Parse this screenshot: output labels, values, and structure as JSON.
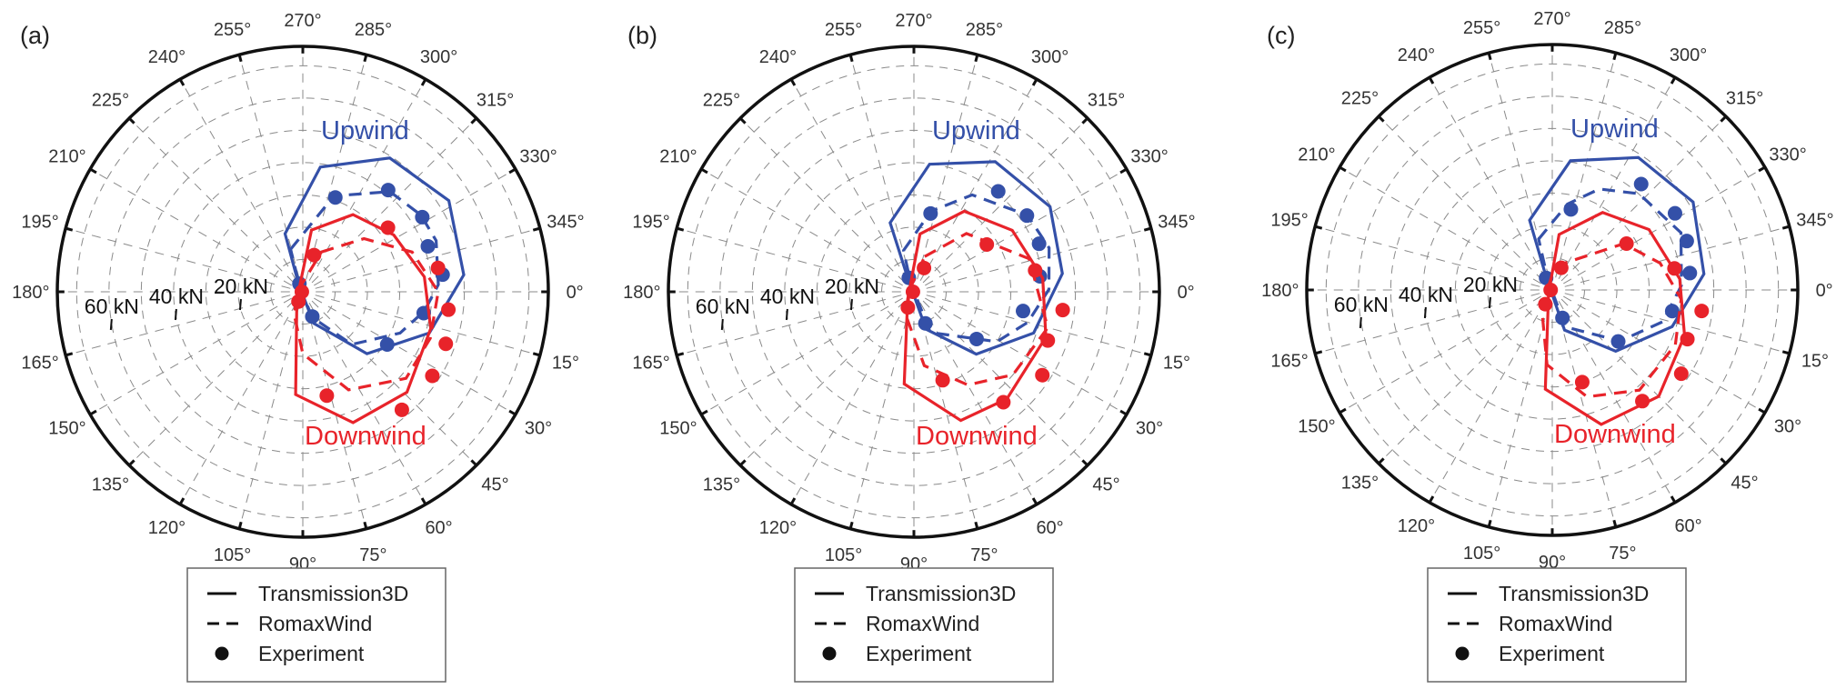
{
  "colors": {
    "upwind": "#3450A8",
    "downwind": "#E8232A",
    "axis": "#111111",
    "grid": "#8a8a8a"
  },
  "legend": {
    "items": [
      {
        "label": "Transmission3D",
        "style": "solid"
      },
      {
        "label": "RomaxWind",
        "style": "dashed"
      },
      {
        "label": "Experiment",
        "style": "dot"
      }
    ]
  },
  "chart_data": [
    {
      "type": "polar-line",
      "panel_label": "(a)",
      "angle_ticks": [
        0,
        15,
        30,
        45,
        60,
        75,
        90,
        105,
        120,
        135,
        150,
        165,
        180,
        195,
        210,
        225,
        240,
        255,
        270,
        285,
        300,
        315,
        330,
        345
      ],
      "angle_direction": "clockwise, 0° at right",
      "radial_ticks": [
        "20 kN",
        "40 kN",
        "60 kN"
      ],
      "radial_range_kN": [
        0,
        76
      ],
      "annotations": {
        "upwind": "Upwind",
        "downwind": "Downwind"
      },
      "series": [
        {
          "name": "Transmission3D",
          "group": "upwind",
          "style": "solid",
          "points": [
            [
              253,
              18.8
            ],
            [
              278,
              39.0
            ],
            [
              303,
              49.4
            ],
            [
              328,
              53.3
            ],
            [
              354,
              50.1
            ],
            [
              18,
              41.2
            ],
            [
              44,
              27.6
            ],
            [
              71,
              10.3
            ],
            [
              242,
              2.8
            ]
          ]
        },
        {
          "name": "RomaxWind",
          "group": "upwind",
          "style": "dashed",
          "points": [
            [
              254,
              13.7
            ],
            [
              288,
              31.2
            ],
            [
              311,
              41.1
            ],
            [
              327,
              43.6
            ],
            [
              339,
              44.2
            ],
            [
              357,
              42.0
            ],
            [
              9,
              38.1
            ],
            [
              23,
              32.7
            ],
            [
              47,
              22.3
            ],
            [
              70,
              8.4
            ],
            [
              240,
              2.0
            ]
          ]
        },
        {
          "name": "Experiment",
          "group": "upwind",
          "style": "dot",
          "points": [
            [
              289,
              30.9
            ],
            [
              310,
              41.1
            ],
            [
              328,
              43.6
            ],
            [
              340,
              41.2
            ],
            [
              353,
              43.6
            ],
            [
              10,
              38.0
            ],
            [
              32,
              30.8
            ],
            [
              69,
              8.2
            ],
            [
              247,
              2.7
            ]
          ]
        },
        {
          "name": "Transmission3D",
          "group": "downwind",
          "style": "solid",
          "points": [
            [
              278,
              19.3
            ],
            [
              303,
              28.5
            ],
            [
              328,
              33.2
            ],
            [
              353,
              37.9
            ],
            [
              16,
              41.2
            ],
            [
              44,
              44.8
            ],
            [
              69,
              43.4
            ],
            [
              94,
              31.9
            ],
            [
              128,
              3.0
            ]
          ]
        },
        {
          "name": "RomaxWind",
          "group": "downwind",
          "style": "dashed",
          "points": [
            [
              295,
              13.6
            ],
            [
              319,
              25.1
            ],
            [
              340,
              36.0
            ],
            [
              0,
              41.9
            ],
            [
              20,
              42.0
            ],
            [
              40,
              41.7
            ],
            [
              65,
              33.5
            ],
            [
              90,
              19.2
            ],
            [
              111,
              7.5
            ],
            [
              200,
              1.5
            ]
          ]
        },
        {
          "name": "Experiment",
          "group": "downwind",
          "style": "dot",
          "points": [
            [
              287,
              11.9
            ],
            [
              323,
              33.0
            ],
            [
              350,
              42.5
            ],
            [
              7,
              45.4
            ],
            [
              20,
              47.1
            ],
            [
              33,
              47.8
            ],
            [
              50,
              47.7
            ],
            [
              77,
              33.0
            ],
            [
              114,
              3.3
            ],
            [
              180,
              0.3
            ]
          ]
        }
      ]
    },
    {
      "type": "polar-line",
      "panel_label": "(b)",
      "angle_ticks": [
        0,
        15,
        30,
        45,
        60,
        75,
        90,
        105,
        120,
        135,
        150,
        165,
        180,
        195,
        210,
        225,
        240,
        255,
        270,
        285,
        300,
        315,
        330,
        345
      ],
      "angle_direction": "clockwise, 0° at right",
      "radial_ticks": [
        "20 kN",
        "40 kN",
        "60 kN"
      ],
      "radial_range_kN": [
        0,
        76
      ],
      "annotations": {
        "upwind": "Upwind",
        "downwind": "Downwind"
      },
      "series": [
        {
          "name": "Transmission3D",
          "group": "upwind",
          "style": "solid",
          "points": [
            [
              251,
              22.6
            ],
            [
              277,
              39.8
            ],
            [
              302,
              47.5
            ],
            [
              328,
              49.7
            ],
            [
              353,
              46.3
            ],
            [
              19,
              39.2
            ],
            [
              45,
              27.3
            ],
            [
              72,
              12.2
            ],
            [
              246,
              4.7
            ]
          ]
        },
        {
          "name": "RomaxWind",
          "group": "upwind",
          "style": "dashed",
          "points": [
            [
              256,
              13.2
            ],
            [
              282,
              25.5
            ],
            [
              301,
              35.0
            ],
            [
              326,
              42.4
            ],
            [
              342,
              44.0
            ],
            [
              359,
              41.8
            ],
            [
              15,
              36.5
            ],
            [
              31,
              30.0
            ],
            [
              68,
              13.6
            ],
            [
              250,
              3.0
            ]
          ]
        },
        {
          "name": "Experiment",
          "group": "upwind",
          "style": "dot",
          "points": [
            [
              282,
              24.8
            ],
            [
              310,
              40.6
            ],
            [
              326,
              42.2
            ],
            [
              339,
              41.5
            ],
            [
              353,
              39.3
            ],
            [
              10,
              34.3
            ],
            [
              37,
              24.3
            ],
            [
              70,
              10.4
            ],
            [
              250,
              4.6
            ]
          ]
        },
        {
          "name": "Transmission3D",
          "group": "downwind",
          "style": "solid",
          "points": [
            [
              276,
              18.0
            ],
            [
              302,
              29.4
            ],
            [
              328,
              35.9
            ],
            [
              354,
              40.1
            ],
            [
              19,
              43.2
            ],
            [
              49,
              43.9
            ],
            [
              70,
              42.4
            ],
            [
              96,
              28.7
            ],
            [
              130,
              3.0
            ]
          ]
        },
        {
          "name": "RomaxWind",
          "group": "downwind",
          "style": "dashed",
          "points": [
            [
              287,
              11.4
            ],
            [
              312,
              24.3
            ],
            [
              344,
              37.1
            ],
            [
              15,
              42.9
            ],
            [
              40,
              40.0
            ],
            [
              60,
              33.3
            ],
            [
              82,
              23.1
            ],
            [
              106,
              8.2
            ],
            [
              200,
              1.5
            ]
          ]
        },
        {
          "name": "Experiment",
          "group": "downwind",
          "style": "dot",
          "points": [
            [
              293,
              8.0
            ],
            [
              327,
              26.9
            ],
            [
              350,
              38.1
            ],
            [
              7,
              46.4
            ],
            [
              20,
              44.1
            ],
            [
              33,
              47.4
            ],
            [
              51,
              44.0
            ],
            [
              72,
              28.8
            ],
            [
              111,
              5.2
            ],
            [
              180,
              0.3
            ]
          ]
        }
      ]
    },
    {
      "type": "polar-line",
      "panel_label": "(c)",
      "angle_ticks": [
        0,
        15,
        30,
        45,
        60,
        75,
        90,
        105,
        120,
        135,
        150,
        165,
        180,
        195,
        210,
        225,
        240,
        255,
        270,
        285,
        300,
        315,
        330,
        345
      ],
      "angle_direction": "clockwise, 0° at right",
      "radial_ticks": [
        "20 kN",
        "40 kN",
        "60 kN"
      ],
      "radial_range_kN": [
        0,
        76
      ],
      "annotations": {
        "upwind": "Upwind",
        "downwind": "Downwind"
      },
      "series": [
        {
          "name": "Transmission3D",
          "group": "upwind",
          "style": "solid",
          "points": [
            [
              252,
              22.7
            ],
            [
              278,
              40.4
            ],
            [
              303,
              48.9
            ],
            [
              328,
              51.4
            ],
            [
              354,
              47.2
            ],
            [
              17,
              38.8
            ],
            [
              44,
              27.3
            ],
            [
              73,
              13.0
            ],
            [
              245,
              4.5
            ]
          ]
        },
        {
          "name": "RomaxWind",
          "group": "upwind",
          "style": "dashed",
          "points": [
            [
              255,
              16.3
            ],
            [
              280,
              27.0
            ],
            [
              295,
              34.5
            ],
            [
              312,
              40.1
            ],
            [
              336,
              43.6
            ],
            [
              358,
              40.0
            ],
            [
              16,
              35.6
            ],
            [
              37,
              26.3
            ],
            [
              70,
              12.2
            ],
            [
              245,
              3.0
            ]
          ]
        },
        {
          "name": "Experiment",
          "group": "upwind",
          "style": "dot",
          "points": [
            [
              283,
              25.6
            ],
            [
              310,
              42.8
            ],
            [
              328,
              44.8
            ],
            [
              340,
              44.3
            ],
            [
              353,
              42.9
            ],
            [
              10,
              37.7
            ],
            [
              38,
              25.9
            ],
            [
              70,
              9.2
            ],
            [
              243,
              4.2
            ]
          ]
        },
        {
          "name": "Transmission3D",
          "group": "downwind",
          "style": "solid",
          "points": [
            [
              277,
              17.3
            ],
            [
              303,
              28.6
            ],
            [
              328,
              35.3
            ],
            [
              355,
              39.6
            ],
            [
              19,
              43.3
            ],
            [
              45,
              46.6
            ],
            [
              70,
              44.3
            ],
            [
              94,
              30.8
            ],
            [
              140,
              1.5
            ]
          ]
        },
        {
          "name": "RomaxWind",
          "group": "downwind",
          "style": "dashed",
          "points": [
            [
              277,
              7.4
            ],
            [
              327,
              26.3
            ],
            [
              346,
              34.4
            ],
            [
              4,
              40.0
            ],
            [
              24,
              41.7
            ],
            [
              49,
              41.1
            ],
            [
              72,
              34.8
            ],
            [
              94,
              23.2
            ],
            [
              119,
              6.7
            ],
            [
              200,
              1.5
            ]
          ]
        },
        {
          "name": "Experiment",
          "group": "downwind",
          "style": "dot",
          "points": [
            [
              292,
              7.4
            ],
            [
              328,
              27.1
            ],
            [
              350,
              38.4
            ],
            [
              8,
              46.7
            ],
            [
              20,
              44.5
            ],
            [
              33,
              47.6
            ],
            [
              51,
              44.3
            ],
            [
              72,
              30.0
            ],
            [
              116,
              4.9
            ],
            [
              180,
              0.5
            ]
          ]
        }
      ]
    }
  ]
}
